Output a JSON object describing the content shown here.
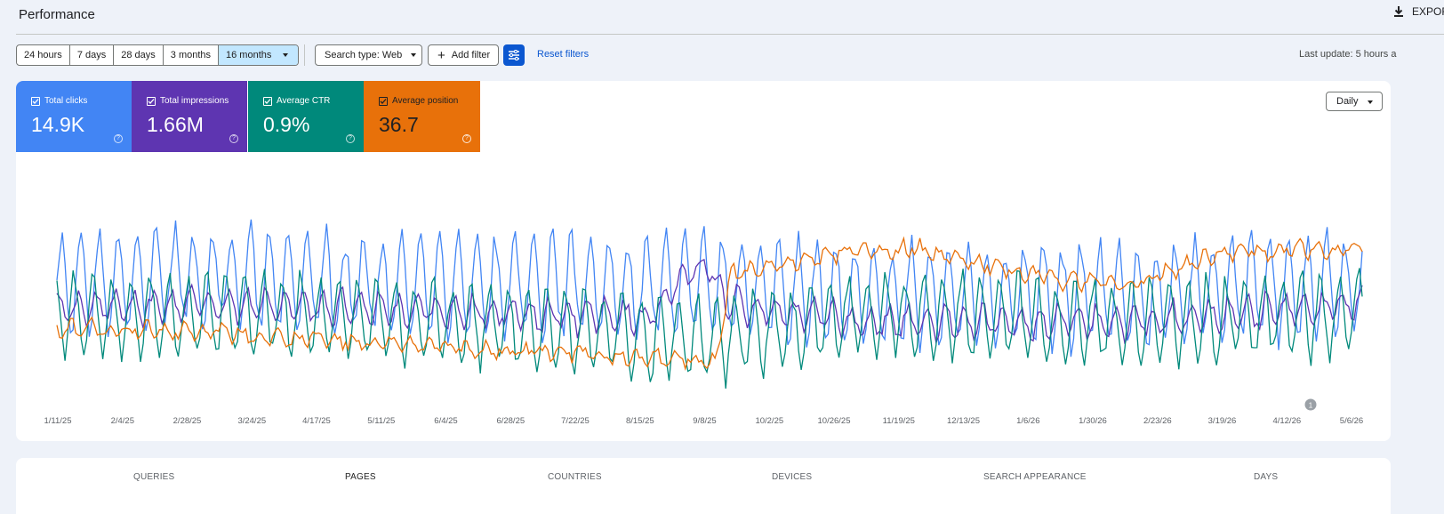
{
  "header": {
    "title": "Performance",
    "export_label": "EXPOR"
  },
  "toolbar": {
    "ranges": [
      "24 hours",
      "7 days",
      "28 days",
      "3 months",
      "16 months"
    ],
    "active_range": "16 months",
    "search_type": "Search type: Web",
    "add_filter": "Add filter",
    "reset_filters": "Reset filters",
    "last_update": "Last update: 5 hours a"
  },
  "metrics": {
    "clicks": {
      "label": "Total clicks",
      "value": "14.9K",
      "color": "#4285f4",
      "checked": true
    },
    "impressions": {
      "label": "Total impressions",
      "value": "1.66M",
      "color": "#5e35b1",
      "checked": true
    },
    "ctr": {
      "label": "Average CTR",
      "value": "0.9%",
      "color": "#00897b",
      "checked": true
    },
    "position": {
      "label": "Average position",
      "value": "36.7",
      "color": "#e8710a",
      "checked": true
    }
  },
  "granularity": "Daily",
  "annotation_badge": "1",
  "tabs": [
    "QUERIES",
    "PAGES",
    "COUNTRIES",
    "DEVICES",
    "SEARCH APPEARANCE",
    "DAYS"
  ],
  "active_tab": "PAGES",
  "chart_data": {
    "type": "line",
    "x_tick_labels": [
      "1/11/25",
      "2/4/25",
      "2/28/25",
      "3/24/25",
      "4/17/25",
      "5/11/25",
      "6/4/25",
      "6/28/25",
      "7/22/25",
      "8/15/25",
      "9/8/25",
      "10/2/25",
      "10/26/25",
      "11/19/25",
      "12/13/25",
      "1/6/26",
      "1/30/26",
      "2/23/26",
      "3/19/26",
      "4/12/26",
      "5/6/26"
    ],
    "x_range": [
      "1/8/25",
      "5/7/26"
    ],
    "days": 485,
    "y_axis_visible": false,
    "gridlines": false,
    "normalized_scale": true,
    "series": [
      {
        "name": "Total clicks",
        "color": "#4285f4",
        "period": 7,
        "knots": [
          [
            0,
            0.55
          ],
          [
            40,
            0.6
          ],
          [
            120,
            0.55
          ],
          [
            240,
            0.55
          ],
          [
            300,
            0.5
          ],
          [
            400,
            0.5
          ],
          [
            484,
            0.55
          ]
        ],
        "amplitude": 0.32
      },
      {
        "name": "Total impressions",
        "color": "#5e35b1",
        "period": 7,
        "knots": [
          [
            0,
            0.42
          ],
          [
            60,
            0.45
          ],
          [
            160,
            0.4
          ],
          [
            220,
            0.38
          ],
          [
            232,
            0.6
          ],
          [
            242,
            0.65
          ],
          [
            248,
            0.45
          ],
          [
            300,
            0.35
          ],
          [
            400,
            0.35
          ],
          [
            484,
            0.45
          ]
        ],
        "amplitude": 0.1
      },
      {
        "name": "Average CTR",
        "color": "#00897b",
        "period": 7,
        "knots": [
          [
            0,
            0.4
          ],
          [
            60,
            0.4
          ],
          [
            120,
            0.38
          ],
          [
            240,
            0.25
          ],
          [
            300,
            0.4
          ],
          [
            400,
            0.35
          ],
          [
            484,
            0.4
          ]
        ],
        "amplitude": 0.26
      },
      {
        "name": "Average position",
        "color": "#e8710a",
        "period": 7,
        "knots": [
          [
            0,
            0.32
          ],
          [
            60,
            0.3
          ],
          [
            120,
            0.24
          ],
          [
            200,
            0.18
          ],
          [
            244,
            0.14
          ],
          [
            250,
            0.6
          ],
          [
            290,
            0.72
          ],
          [
            320,
            0.74
          ],
          [
            360,
            0.6
          ],
          [
            400,
            0.55
          ],
          [
            430,
            0.72
          ],
          [
            484,
            0.75
          ]
        ],
        "amplitude": 0.04
      }
    ]
  }
}
